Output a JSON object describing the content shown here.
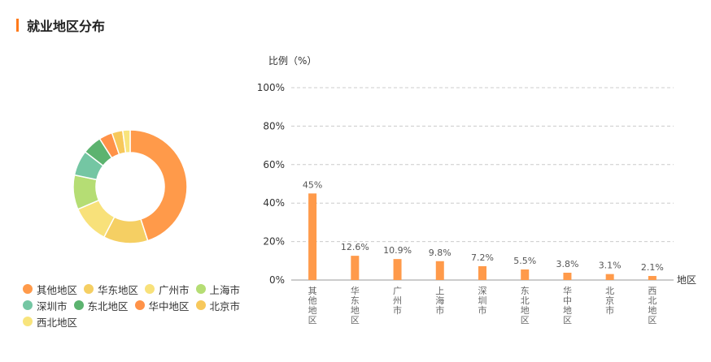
{
  "header": {
    "title": "就业地区分布"
  },
  "legend": {
    "items": [
      {
        "label": "其他地区",
        "color": "#ff9a4a"
      },
      {
        "label": "华东地区",
        "color": "#f5cf63"
      },
      {
        "label": "广州市",
        "color": "#f8e17a"
      },
      {
        "label": "上海市",
        "color": "#b5dd74"
      },
      {
        "label": "深圳市",
        "color": "#74c6a3"
      },
      {
        "label": "东北地区",
        "color": "#5cb36f"
      },
      {
        "label": "华中地区",
        "color": "#ff9248"
      },
      {
        "label": "北京市",
        "color": "#f7c85b"
      },
      {
        "label": "西北地区",
        "color": "#f8e47c"
      }
    ]
  },
  "chart_data": [
    {
      "type": "pie",
      "style": "donut",
      "categories": [
        "其他地区",
        "华东地区",
        "广州市",
        "上海市",
        "深圳市",
        "东北地区",
        "华中地区",
        "北京市",
        "西北地区"
      ],
      "values": [
        45,
        12.6,
        10.9,
        9.8,
        7.2,
        5.5,
        3.8,
        3.1,
        2.1
      ],
      "colors": [
        "#ff9a4a",
        "#f5cf63",
        "#f8e17a",
        "#b5dd74",
        "#74c6a3",
        "#5cb36f",
        "#ff9248",
        "#f7c85b",
        "#f8e47c"
      ]
    },
    {
      "type": "bar",
      "ylabel": "比例（%）",
      "xlabel": "地区",
      "ylim": [
        0,
        100
      ],
      "yticks": [
        "0%",
        "20%",
        "40%",
        "60%",
        "80%",
        "100%"
      ],
      "grid": true,
      "bar_color": "#ff9a4a",
      "categories": [
        "其他地区",
        "华东地区",
        "广州市",
        "上海市",
        "深圳市",
        "东北地区",
        "华中地区",
        "北京市",
        "西北地区"
      ],
      "values": [
        45,
        12.6,
        10.9,
        9.8,
        7.2,
        5.5,
        3.8,
        3.1,
        2.1
      ],
      "value_labels": [
        "45%",
        "12.6%",
        "10.9%",
        "9.8%",
        "7.2%",
        "5.5%",
        "3.8%",
        "3.1%",
        "2.1%"
      ]
    }
  ]
}
